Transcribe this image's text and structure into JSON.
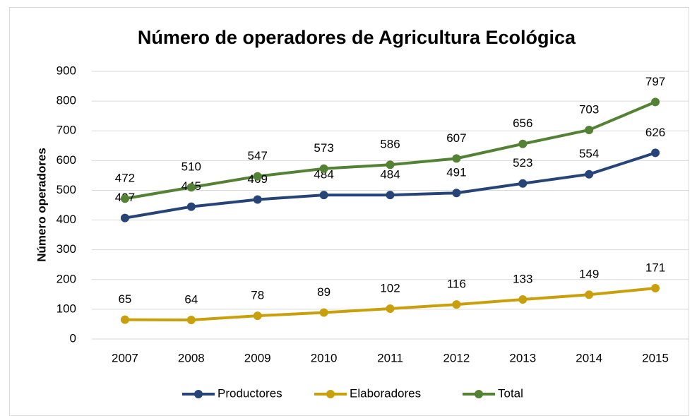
{
  "chart_data": {
    "type": "line",
    "title": "Número de operadores de Agricultura Ecológica",
    "y_label": "Número operadores",
    "categories": [
      "2007",
      "2008",
      "2009",
      "2010",
      "2011",
      "2012",
      "2013",
      "2014",
      "2015"
    ],
    "series": [
      {
        "name": "Productores",
        "color": "#264478",
        "values": [
          407,
          445,
          469,
          484,
          484,
          491,
          523,
          554,
          626
        ]
      },
      {
        "name": "Elaboradores",
        "color": "#c9a00c",
        "values": [
          65,
          64,
          78,
          89,
          102,
          116,
          133,
          149,
          171
        ]
      },
      {
        "name": "Total",
        "color": "#548235",
        "values": [
          472,
          510,
          547,
          573,
          586,
          607,
          656,
          703,
          797
        ]
      }
    ],
    "ylim": [
      0,
      900
    ],
    "yticks": [
      0,
      100,
      200,
      300,
      400,
      500,
      600,
      700,
      800,
      900
    ],
    "grid": true,
    "legend": "bottom"
  }
}
